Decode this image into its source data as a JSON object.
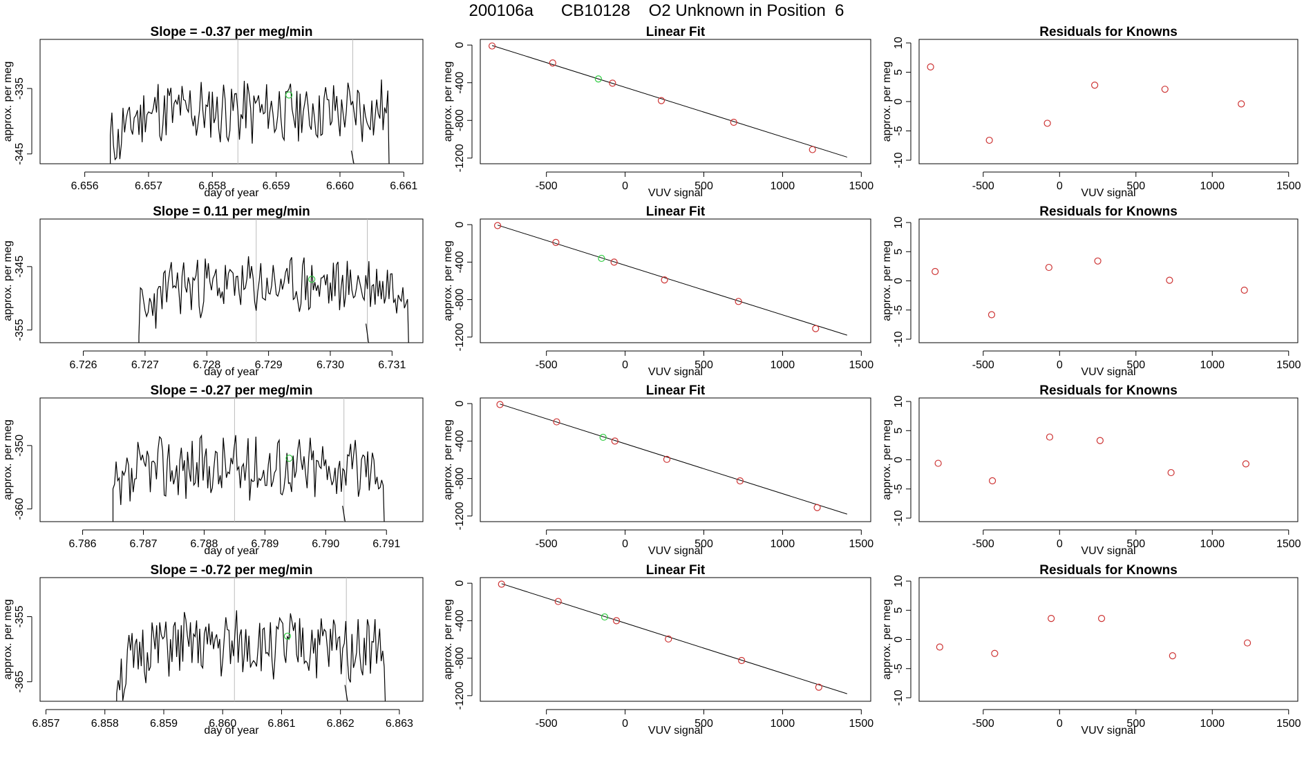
{
  "title": "200106a      CB10128    O2 Unknown in Position  6",
  "colors": {
    "trace": "#000000",
    "point": "#cd3333",
    "highlight": "#2ecc40",
    "vline": "#bbbbbb",
    "fitline": "#000000"
  },
  "chart_data": [
    {
      "row": 1,
      "time_panel": {
        "type": "line",
        "title": "Slope =  -0.37  per meg/min",
        "xlabel": "day of year",
        "ylabel": "approx. per meg",
        "xticks": [
          6.656,
          6.657,
          6.658,
          6.659,
          6.66,
          6.661
        ],
        "xtick_labels": [
          "6.656",
          "6.657",
          "6.658",
          "6.659",
          "6.660",
          "6.661"
        ],
        "yticks": [
          -345,
          -335
        ],
        "ytick_labels": [
          "-345",
          "-335"
        ],
        "xlim": [
          6.6553,
          6.6613
        ],
        "ylim": [
          -346.5,
          -327.5
        ],
        "start": 6.6564,
        "end": 6.6609,
        "base": -338.5,
        "amplitude": 4.5,
        "seed": 11,
        "vlines": [
          6.6584,
          6.6602
        ],
        "marker": {
          "x": 6.6592,
          "y": -336.0
        }
      },
      "fit_panel": {
        "type": "scatter",
        "title": "Linear Fit",
        "xlabel": "VUV signal",
        "ylabel": "approx. per meg",
        "xticks": [
          -500,
          0,
          500,
          1000,
          1500
        ],
        "xtick_labels": [
          "-500",
          "0",
          "500",
          "1000",
          "1500"
        ],
        "yticks": [
          -1200,
          -800,
          -400,
          0
        ],
        "ytick_labels": [
          "-1200",
          "-800",
          "-400",
          "0"
        ],
        "xlim": [
          -920,
          1560
        ],
        "ylim": [
          -1260,
          60
        ],
        "points": [
          [
            -845,
            -10
          ],
          [
            -460,
            -190
          ],
          [
            -80,
            -405
          ],
          [
            230,
            -590
          ],
          [
            690,
            -820
          ],
          [
            1190,
            -1110
          ]
        ],
        "highlight": [
          -170,
          -360
        ],
        "line": [
          [
            -845,
            -5
          ],
          [
            1410,
            -1190
          ]
        ]
      },
      "residual_panel": {
        "type": "scatter",
        "title": "Residuals for Knowns",
        "xlabel": "VUV signal",
        "ylabel": "approx. per meg",
        "xticks": [
          -500,
          0,
          500,
          1000,
          1500
        ],
        "xtick_labels": [
          "-500",
          "0",
          "500",
          "1000",
          "1500"
        ],
        "yticks": [
          -10,
          -5,
          0,
          5,
          10
        ],
        "ytick_labels": [
          "-10",
          "-5",
          "0",
          "5",
          "10"
        ],
        "xlim": [
          -920,
          1560
        ],
        "ylim": [
          -10.6,
          10.6
        ],
        "points": [
          [
            -845,
            5.9
          ],
          [
            -460,
            -6.6
          ],
          [
            -80,
            -3.7
          ],
          [
            230,
            2.8
          ],
          [
            690,
            2.1
          ],
          [
            1190,
            -0.4
          ]
        ]
      }
    },
    {
      "row": 2,
      "time_panel": {
        "type": "line",
        "title": "Slope =  0.11  per meg/min",
        "xlabel": "day of year",
        "ylabel": "approx. per meg",
        "xticks": [
          6.726,
          6.727,
          6.728,
          6.729,
          6.73,
          6.731
        ],
        "xtick_labels": [
          "6.726",
          "6.727",
          "6.728",
          "6.729",
          "6.730",
          "6.731"
        ],
        "yticks": [
          -355,
          -345
        ],
        "ytick_labels": [
          "-355",
          "-345"
        ],
        "xlim": [
          6.7253,
          6.7315
        ],
        "ylim": [
          -357.0,
          -337.5
        ],
        "start": 6.7269,
        "end": 6.7314,
        "base": -348.0,
        "amplitude": 4.0,
        "seed": 23,
        "vlines": [
          6.7288,
          6.7306
        ],
        "marker": {
          "x": 6.7297,
          "y": -347.0
        }
      },
      "fit_panel": {
        "type": "scatter",
        "title": "Linear Fit",
        "xlabel": "VUV signal",
        "ylabel": "approx. per meg",
        "xticks": [
          -500,
          0,
          500,
          1000,
          1500
        ],
        "xtick_labels": [
          "-500",
          "0",
          "500",
          "1000",
          "1500"
        ],
        "yticks": [
          -1200,
          -800,
          -400,
          0
        ],
        "ytick_labels": [
          "-1200",
          "-800",
          "-400",
          "0"
        ],
        "xlim": [
          -920,
          1560
        ],
        "ylim": [
          -1260,
          60
        ],
        "points": [
          [
            -810,
            -10
          ],
          [
            -440,
            -190
          ],
          [
            -70,
            -400
          ],
          [
            250,
            -590
          ],
          [
            720,
            -820
          ],
          [
            1210,
            -1110
          ]
        ],
        "highlight": [
          -150,
          -360
        ],
        "line": [
          [
            -810,
            -5
          ],
          [
            1410,
            -1180
          ]
        ]
      },
      "residual_panel": {
        "type": "scatter",
        "title": "Residuals for Knowns",
        "xlabel": "VUV signal",
        "ylabel": "approx. per meg",
        "xticks": [
          -500,
          0,
          500,
          1000,
          1500
        ],
        "xtick_labels": [
          "-500",
          "0",
          "500",
          "1000",
          "1500"
        ],
        "yticks": [
          -10,
          -5,
          0,
          5,
          10
        ],
        "ytick_labels": [
          "-10",
          "-5",
          "0",
          "5",
          "10"
        ],
        "xlim": [
          -920,
          1560
        ],
        "ylim": [
          -10.6,
          10.6
        ],
        "points": [
          [
            -815,
            1.6
          ],
          [
            -445,
            -5.8
          ],
          [
            -70,
            2.3
          ],
          [
            250,
            3.4
          ],
          [
            720,
            0.1
          ],
          [
            1210,
            -1.6
          ]
        ]
      }
    },
    {
      "row": 3,
      "time_panel": {
        "type": "line",
        "title": "Slope =  -0.27  per meg/min",
        "xlabel": "day of year",
        "ylabel": "approx. per meg",
        "xticks": [
          6.786,
          6.787,
          6.788,
          6.789,
          6.79,
          6.791
        ],
        "xtick_labels": [
          "6.786",
          "6.787",
          "6.788",
          "6.789",
          "6.790",
          "6.791"
        ],
        "yticks": [
          -360,
          -350
        ],
        "ytick_labels": [
          "-360",
          "-350"
        ],
        "xlim": [
          6.7853,
          6.7916
        ],
        "ylim": [
          -362.0,
          -342.5
        ],
        "start": 6.7865,
        "end": 6.7911,
        "base": -353.5,
        "amplitude": 4.5,
        "seed": 37,
        "vlines": [
          6.7885,
          6.7903
        ],
        "marker": {
          "x": 6.7894,
          "y": -352.0
        }
      },
      "fit_panel": {
        "type": "scatter",
        "title": "Linear Fit",
        "xlabel": "VUV signal",
        "ylabel": "approx. per meg",
        "xticks": [
          -500,
          0,
          500,
          1000,
          1500
        ],
        "xtick_labels": [
          "-500",
          "0",
          "500",
          "1000",
          "1500"
        ],
        "yticks": [
          -1200,
          -800,
          -400,
          0
        ],
        "ytick_labels": [
          "-1200",
          "-800",
          "-400",
          "0"
        ],
        "xlim": [
          -920,
          1560
        ],
        "ylim": [
          -1260,
          60
        ],
        "points": [
          [
            -795,
            -10
          ],
          [
            -435,
            -195
          ],
          [
            -65,
            -400
          ],
          [
            265,
            -595
          ],
          [
            730,
            -825
          ],
          [
            1220,
            -1110
          ]
        ],
        "highlight": [
          -140,
          -360
        ],
        "line": [
          [
            -795,
            -5
          ],
          [
            1410,
            -1180
          ]
        ]
      },
      "residual_panel": {
        "type": "scatter",
        "title": "Residuals for Knowns",
        "xlabel": "VUV signal",
        "ylabel": "approx. per meg",
        "xticks": [
          -500,
          0,
          500,
          1000,
          1500
        ],
        "xtick_labels": [
          "-500",
          "0",
          "500",
          "1000",
          "1500"
        ],
        "yticks": [
          -10,
          -5,
          0,
          5,
          10
        ],
        "ytick_labels": [
          "-10",
          "-5",
          "0",
          "5",
          "10"
        ],
        "xlim": [
          -920,
          1560
        ],
        "ylim": [
          -10.6,
          10.6
        ],
        "points": [
          [
            -795,
            -0.6
          ],
          [
            -440,
            -3.6
          ],
          [
            -65,
            3.9
          ],
          [
            265,
            3.3
          ],
          [
            730,
            -2.2
          ],
          [
            1220,
            -0.7
          ]
        ]
      }
    },
    {
      "row": 4,
      "time_panel": {
        "type": "line",
        "title": "Slope =  -0.72  per meg/min",
        "xlabel": "day of year",
        "ylabel": "approx. per meg",
        "xticks": [
          6.857,
          6.858,
          6.859,
          6.86,
          6.861,
          6.862,
          6.863
        ],
        "xtick_labels": [
          "6.857",
          "6.858",
          "6.859",
          "6.860",
          "6.861",
          "6.862",
          "6.863"
        ],
        "yticks": [
          -365,
          -355
        ],
        "ytick_labels": [
          "-365",
          "-355"
        ],
        "xlim": [
          6.8569,
          6.8634
        ],
        "ylim": [
          -368.0,
          -349.0
        ],
        "start": 6.8582,
        "end": 6.8629,
        "base": -359.5,
        "amplitude": 4.5,
        "seed": 51,
        "vlines": [
          6.8602,
          6.8621
        ],
        "marker": {
          "x": 6.8611,
          "y": -358.0
        }
      },
      "fit_panel": {
        "type": "scatter",
        "title": "Linear Fit",
        "xlabel": "VUV signal",
        "ylabel": "approx. per meg",
        "xticks": [
          -500,
          0,
          500,
          1000,
          1500
        ],
        "xtick_labels": [
          "-500",
          "0",
          "500",
          "1000",
          "1500"
        ],
        "yticks": [
          -1200,
          -800,
          -400,
          0
        ],
        "ytick_labels": [
          "-1200",
          "-800",
          "-400",
          "0"
        ],
        "xlim": [
          -920,
          1560
        ],
        "ylim": [
          -1260,
          60
        ],
        "points": [
          [
            -785,
            -10
          ],
          [
            -425,
            -195
          ],
          [
            -55,
            -400
          ],
          [
            275,
            -595
          ],
          [
            740,
            -825
          ],
          [
            1230,
            -1110
          ]
        ],
        "highlight": [
          -130,
          -360
        ],
        "line": [
          [
            -785,
            -5
          ],
          [
            1410,
            -1180
          ]
        ]
      },
      "residual_panel": {
        "type": "scatter",
        "title": "Residuals for Knowns",
        "xlabel": "VUV signal",
        "ylabel": "approx. per meg",
        "xticks": [
          -500,
          0,
          500,
          1000,
          1500
        ],
        "xtick_labels": [
          "-500",
          "0",
          "500",
          "1000",
          "1500"
        ],
        "yticks": [
          -10,
          -5,
          0,
          5,
          10
        ],
        "ytick_labels": [
          "-10",
          "-5",
          "0",
          "5",
          "10"
        ],
        "xlim": [
          -920,
          1560
        ],
        "ylim": [
          -10.6,
          10.6
        ],
        "points": [
          [
            -785,
            -1.3
          ],
          [
            -425,
            -2.4
          ],
          [
            -55,
            3.6
          ],
          [
            275,
            3.6
          ],
          [
            740,
            -2.8
          ],
          [
            1230,
            -0.6
          ]
        ]
      }
    }
  ]
}
